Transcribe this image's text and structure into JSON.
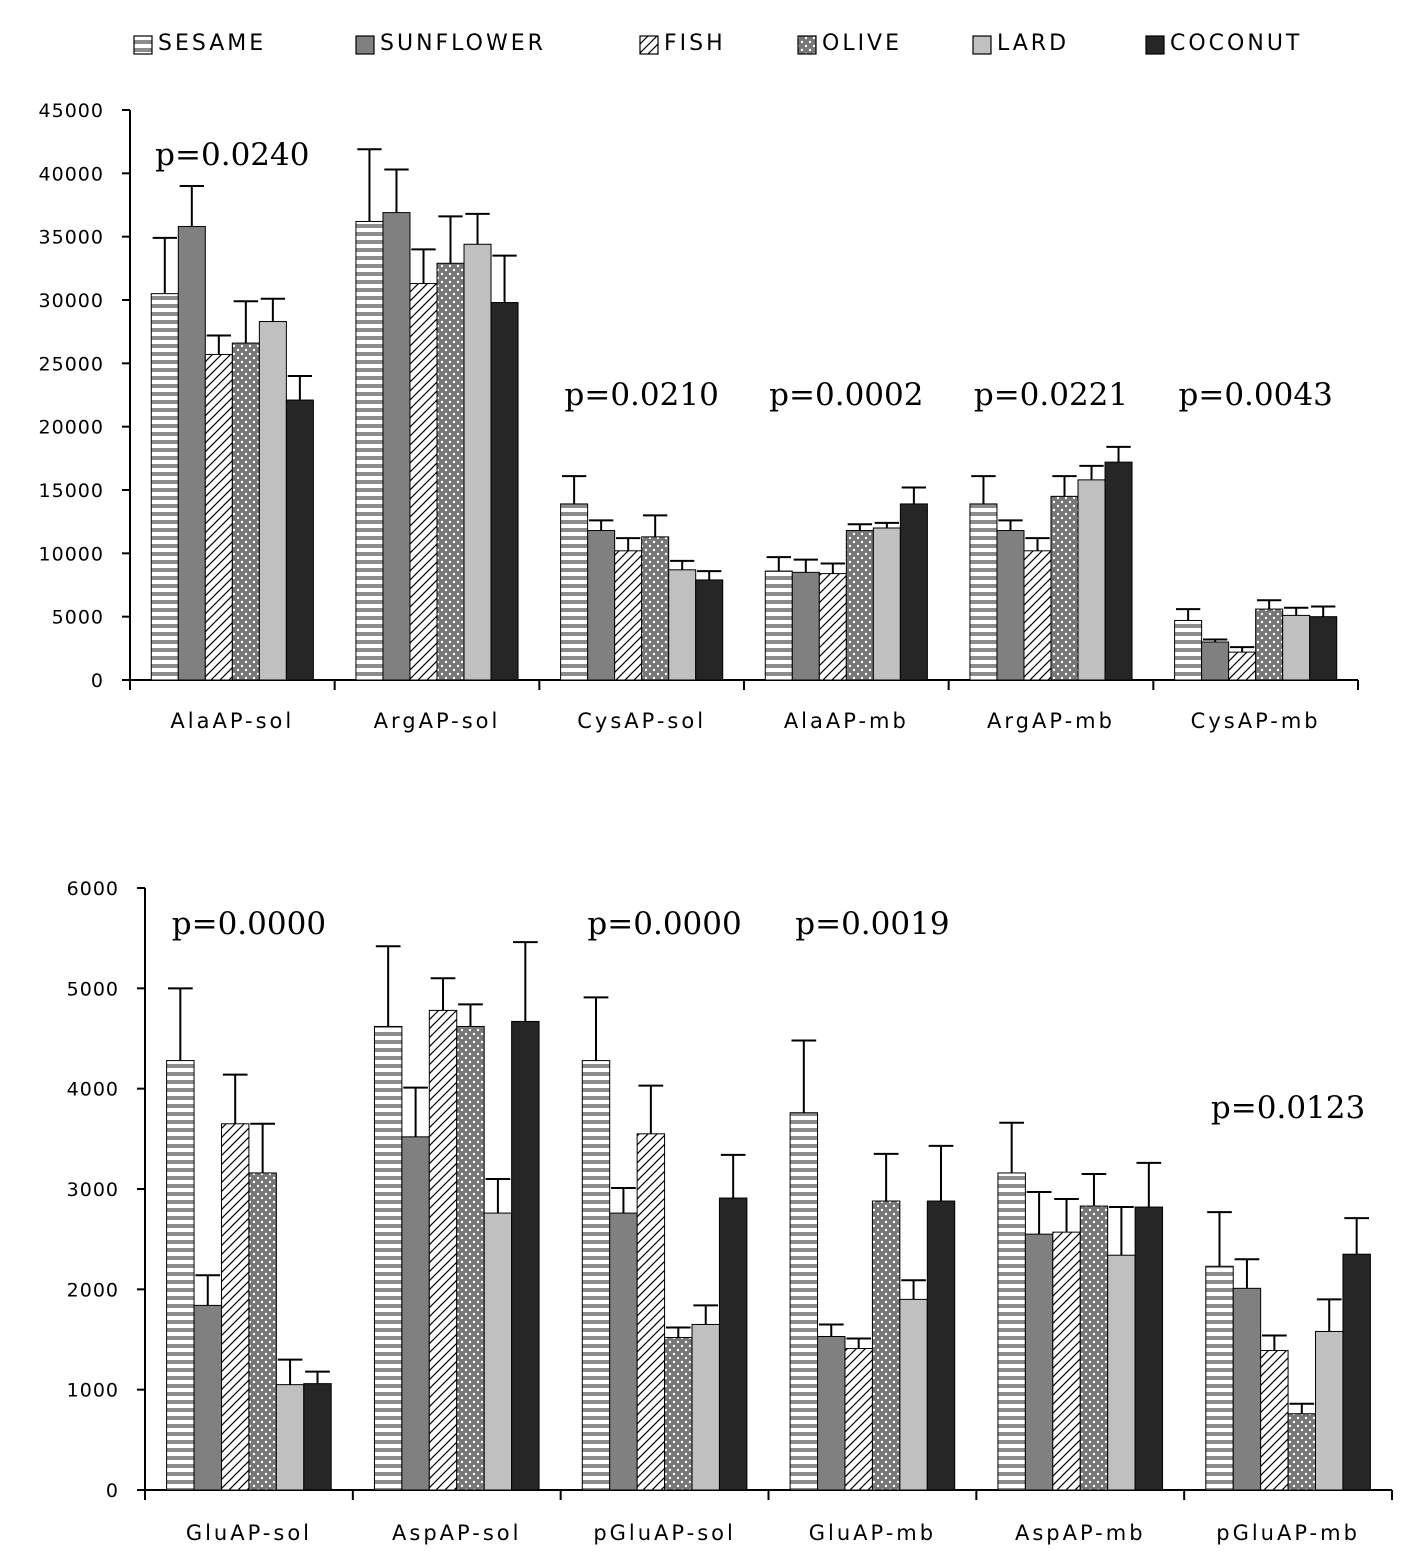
{
  "series_styles": [
    {
      "fill": "url(#pat-sesame)"
    },
    {
      "fill": "#808080"
    },
    {
      "fill": "url(#pat-fish)"
    },
    {
      "fill": "url(#pat-olive)"
    },
    {
      "fill": "#c0c0c0"
    },
    {
      "fill": "#262626"
    }
  ],
  "chart_data": [
    {
      "type": "bar",
      "title": "",
      "xlabel": "",
      "ylabel": "",
      "ylim": [
        0,
        45000
      ],
      "yticks": [
        0,
        5000,
        10000,
        15000,
        20000,
        25000,
        30000,
        35000,
        40000,
        45000
      ],
      "ytick_labels": [
        "0",
        "5000",
        "10000",
        "15000",
        "20000",
        "25000",
        "30000",
        "35000",
        "40000",
        "45000"
      ],
      "grid": false,
      "legend": "top",
      "categories": [
        "AlaAP-sol",
        "ArgAP-sol",
        "CysAP-sol",
        "AlaAP-mb",
        "ArgAP-mb",
        "CysAP-mb"
      ],
      "series": [
        {
          "name": "SESAME",
          "values": [
            30500,
            36200,
            13900,
            8600,
            13900,
            4700
          ],
          "errors": [
            4400,
            5700,
            2200,
            1100,
            2200,
            900
          ]
        },
        {
          "name": "SUNFLOWER",
          "values": [
            35800,
            36900,
            11800,
            8500,
            11800,
            3000
          ],
          "errors": [
            3200,
            3400,
            800,
            1000,
            800,
            200
          ]
        },
        {
          "name": "FISH",
          "values": [
            25700,
            31300,
            10200,
            8400,
            10200,
            2200
          ],
          "errors": [
            1500,
            2700,
            1000,
            800,
            1000,
            400
          ]
        },
        {
          "name": "OLIVE",
          "values": [
            26600,
            32900,
            11300,
            11800,
            14500,
            5600
          ],
          "errors": [
            3300,
            3700,
            1700,
            500,
            1600,
            700
          ]
        },
        {
          "name": "LARD",
          "values": [
            28300,
            34400,
            8700,
            12000,
            15800,
            5100
          ],
          "errors": [
            1800,
            2400,
            700,
            400,
            1100,
            600
          ]
        },
        {
          "name": "COCONUT",
          "values": [
            22100,
            29800,
            7900,
            13900,
            17200,
            5000
          ],
          "errors": [
            1900,
            3700,
            700,
            1300,
            1200,
            800
          ]
        }
      ],
      "annotations": [
        {
          "text": "p=0.0240",
          "category": "AlaAP-sol"
        },
        {
          "text": "p=0.0210",
          "category": "CysAP-sol"
        },
        {
          "text": "p=0.0002",
          "category": "AlaAP-mb"
        },
        {
          "text": "p=0.0221",
          "category": "ArgAP-mb"
        },
        {
          "text": "p=0.0043",
          "category": "CysAP-mb"
        }
      ]
    },
    {
      "type": "bar",
      "title": "",
      "xlabel": "",
      "ylabel": "",
      "ylim": [
        0,
        6000
      ],
      "yticks": [
        0,
        1000,
        2000,
        3000,
        4000,
        5000,
        6000
      ],
      "ytick_labels": [
        "0",
        "1000",
        "2000",
        "3000",
        "4000",
        "5000",
        "6000"
      ],
      "grid": false,
      "legend": "none",
      "categories": [
        "GluAP-sol",
        "AspAP-sol",
        "pGluAP-sol",
        "GluAP-mb",
        "AspAP-mb",
        "pGluAP-mb"
      ],
      "series": [
        {
          "name": "SESAME",
          "values": [
            4280,
            4620,
            4280,
            3760,
            3160,
            2230
          ],
          "errors": [
            720,
            800,
            630,
            720,
            500,
            540
          ]
        },
        {
          "name": "SUNFLOWER",
          "values": [
            1840,
            3520,
            2760,
            1530,
            2550,
            2010
          ],
          "errors": [
            300,
            490,
            250,
            120,
            420,
            290
          ]
        },
        {
          "name": "FISH",
          "values": [
            3650,
            4780,
            3550,
            1410,
            2570,
            1390
          ],
          "errors": [
            490,
            320,
            480,
            100,
            330,
            150
          ]
        },
        {
          "name": "OLIVE",
          "values": [
            3160,
            4620,
            1520,
            2880,
            2830,
            760
          ],
          "errors": [
            490,
            220,
            100,
            470,
            320,
            100
          ]
        },
        {
          "name": "LARD",
          "values": [
            1050,
            2760,
            1650,
            1900,
            2340,
            1580
          ],
          "errors": [
            250,
            340,
            190,
            190,
            480,
            320
          ]
        },
        {
          "name": "COCONUT",
          "values": [
            1060,
            4670,
            2910,
            2880,
            2820,
            2350
          ],
          "errors": [
            120,
            790,
            430,
            550,
            440,
            360
          ]
        }
      ],
      "annotations": [
        {
          "text": "p=0.0000",
          "category": "GluAP-sol"
        },
        {
          "text": "p=0.0000",
          "category": "pGluAP-sol"
        },
        {
          "text": "p=0.0019",
          "category": "GluAP-mb"
        },
        {
          "text": "p=0.0123",
          "category": "pGluAP-mb"
        }
      ]
    }
  ]
}
